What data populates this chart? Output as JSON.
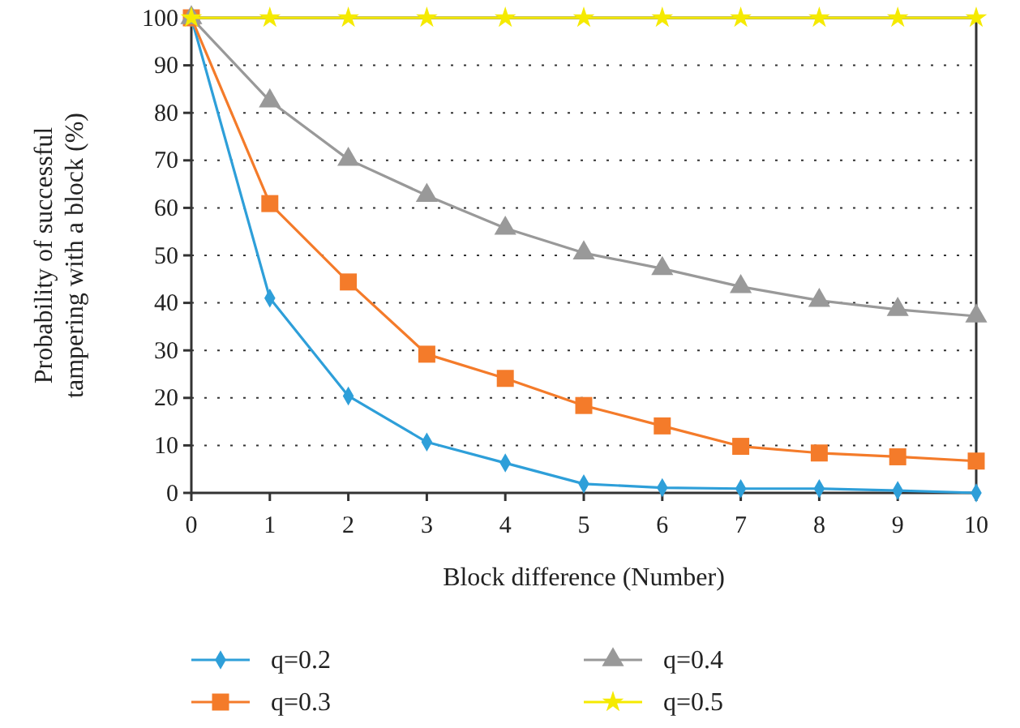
{
  "chart_data": {
    "type": "line",
    "xlabel": "Block difference (Number)",
    "ylabel": "Probability of successful tampering with a block (%)",
    "x": [
      0,
      1,
      2,
      3,
      4,
      5,
      6,
      7,
      8,
      9,
      10
    ],
    "series": [
      {
        "name": "q=0.2",
        "color": "#2e9fd9",
        "marker": "diamond",
        "values": [
          100,
          41,
          20.4,
          10.7,
          6.3,
          1.9,
          1.1,
          0.9,
          0.9,
          0.5,
          0
        ]
      },
      {
        "name": "q=0.3",
        "color": "#f47b2a",
        "marker": "square",
        "values": [
          100,
          60.9,
          44.4,
          29.2,
          24.1,
          18.4,
          14.1,
          9.8,
          8.4,
          7.6,
          6.7
        ]
      },
      {
        "name": "q=0.4",
        "color": "#999999",
        "marker": "triangle",
        "values": [
          100,
          82.5,
          70.2,
          62.6,
          55.7,
          50.5,
          47.2,
          43.4,
          40.5,
          38.6,
          37.2
        ]
      },
      {
        "name": "q=0.5",
        "color": "#f5ea00",
        "marker": "star",
        "values": [
          100,
          100,
          100,
          100,
          100,
          100,
          100,
          100,
          100,
          100,
          100
        ]
      }
    ],
    "xlim": [
      0,
      10
    ],
    "xticks": [
      0,
      1,
      2,
      3,
      4,
      5,
      6,
      7,
      8,
      9,
      10
    ],
    "ylim": [
      0,
      100
    ],
    "yticks": [
      0,
      10,
      20,
      30,
      40,
      50,
      60,
      70,
      80,
      90,
      100
    ],
    "grid": "y",
    "legend": "bottom"
  }
}
